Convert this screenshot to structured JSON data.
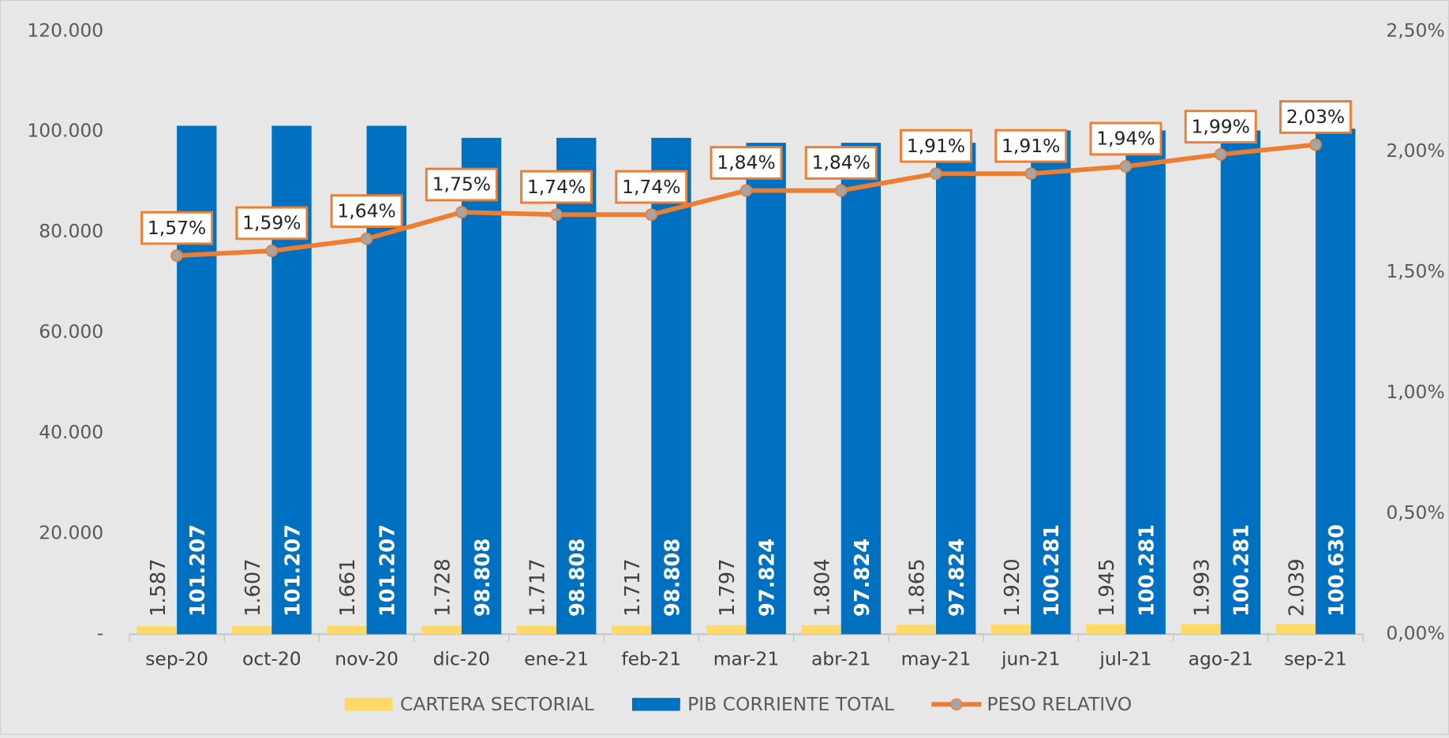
{
  "chart_data": {
    "type": "bar",
    "categories": [
      "sep-20",
      "oct-20",
      "nov-20",
      "dic-20",
      "ene-21",
      "feb-21",
      "mar-21",
      "abr-21",
      "may-21",
      "jun-21",
      "jul-21",
      "ago-21",
      "sep-21"
    ],
    "series": [
      {
        "name": "CARTERA SECTORIAL",
        "type": "bar",
        "axis": "y",
        "color": "#ffd966",
        "values": [
          1587,
          1607,
          1661,
          1728,
          1717,
          1717,
          1797,
          1804,
          1865,
          1920,
          1945,
          1993,
          2039
        ],
        "value_labels": [
          "1.587",
          "1.607",
          "1.661",
          "1.728",
          "1.717",
          "1.717",
          "1.797",
          "1.804",
          "1.865",
          "1.920",
          "1.945",
          "1.993",
          "2.039"
        ]
      },
      {
        "name": "PIB CORRIENTE TOTAL",
        "type": "bar",
        "axis": "y",
        "color": "#0070c0",
        "values": [
          101207,
          101207,
          101207,
          98808,
          98808,
          98808,
          97824,
          97824,
          97824,
          100281,
          100281,
          100281,
          100630
        ],
        "value_labels": [
          "101.207",
          "101.207",
          "101.207",
          "98.808",
          "98.808",
          "98.808",
          "97.824",
          "97.824",
          "97.824",
          "100.281",
          "100.281",
          "100.281",
          "100.630"
        ]
      },
      {
        "name": "PESO RELATIVO",
        "type": "line",
        "axis": "y2",
        "color": "#ed7d31",
        "values": [
          1.57,
          1.59,
          1.64,
          1.75,
          1.74,
          1.74,
          1.84,
          1.84,
          1.91,
          1.91,
          1.94,
          1.99,
          2.03
        ],
        "value_labels": [
          "1,57%",
          "1,59%",
          "1,64%",
          "1,75%",
          "1,74%",
          "1,74%",
          "1,84%",
          "1,84%",
          "1,91%",
          "1,91%",
          "1,94%",
          "1,99%",
          "2,03%"
        ]
      }
    ],
    "ylim": [
      0,
      120000
    ],
    "yticks": [
      {
        "value": 0,
        "label": "-"
      },
      {
        "value": 20000,
        "label": "20.000"
      },
      {
        "value": 40000,
        "label": "40.000"
      },
      {
        "value": 60000,
        "label": "60.000"
      },
      {
        "value": 80000,
        "label": "80.000"
      },
      {
        "value": 100000,
        "label": "100.000"
      },
      {
        "value": 120000,
        "label": "120.000"
      }
    ],
    "y2lim": [
      0,
      2.5
    ],
    "y2ticks": [
      {
        "value": 0,
        "label": "0,00%"
      },
      {
        "value": 0.5,
        "label": "0,50%"
      },
      {
        "value": 1,
        "label": "1,00%"
      },
      {
        "value": 1.5,
        "label": "1,50%"
      },
      {
        "value": 2,
        "label": "2,00%"
      },
      {
        "value": 2.5,
        "label": "2,50%"
      }
    ],
    "grid": false,
    "legend": "bottom"
  }
}
